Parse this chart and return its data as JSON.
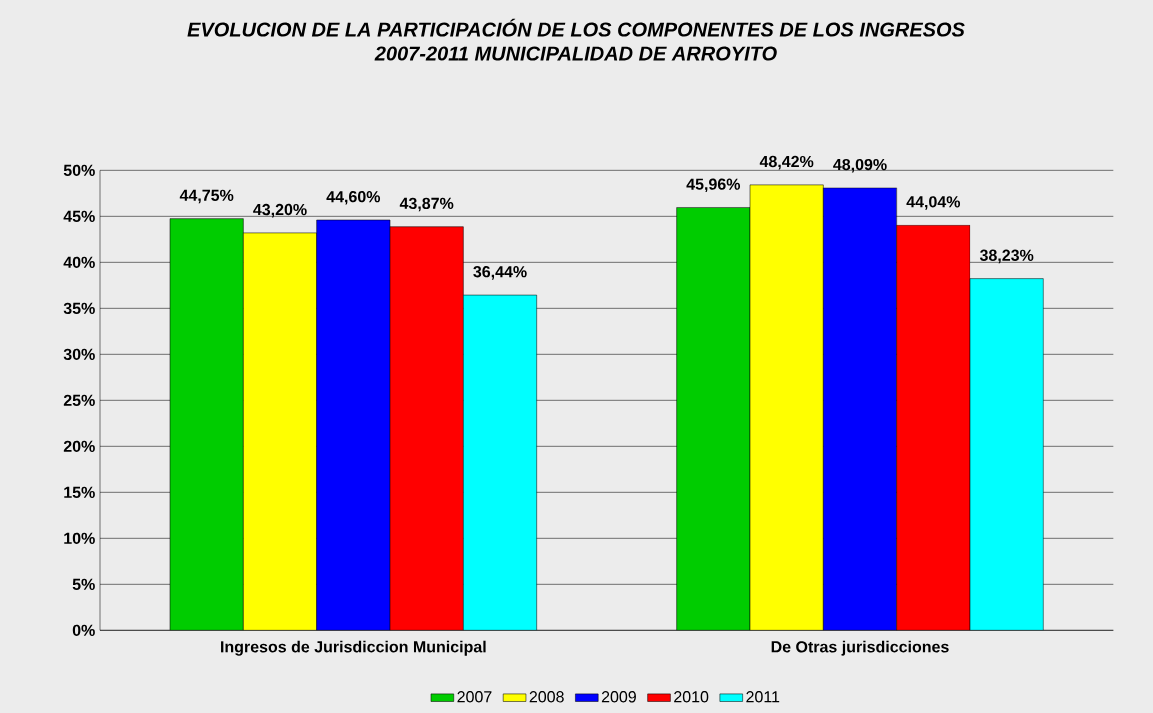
{
  "chart_data": {
    "type": "bar",
    "title": "EVOLUCION DE LA PARTICIPACIÓN DE LOS COMPONENTES DE LOS INGRESOS",
    "subtitle": "2007-2011 MUNICIPALIDAD DE ARROYITO",
    "categories": [
      "Ingresos de Jurisdiccion Municipal",
      "De Otras jurisdicciones"
    ],
    "series": [
      {
        "name": "2007",
        "color": "#00cc00",
        "values": [
          44.75,
          45.96
        ],
        "value_labels": [
          "44,75%",
          "45,96%"
        ]
      },
      {
        "name": "2008",
        "color": "#ffff00",
        "values": [
          43.2,
          48.42
        ],
        "value_labels": [
          "43,20%",
          "48,42%"
        ]
      },
      {
        "name": "2009",
        "color": "#0000ff",
        "values": [
          44.6,
          48.09
        ],
        "value_labels": [
          "44,60%",
          "48,09%"
        ]
      },
      {
        "name": "2010",
        "color": "#ff0000",
        "values": [
          43.87,
          44.04
        ],
        "value_labels": [
          "43,87%",
          "44,04%"
        ]
      },
      {
        "name": "2011",
        "color": "#00ffff",
        "values": [
          36.44,
          38.23
        ],
        "value_labels": [
          "36,44%",
          "38,23%"
        ]
      }
    ],
    "ylim": [
      0,
      50
    ],
    "yticks": [
      {
        "value": 0,
        "label": "0%"
      },
      {
        "value": 5,
        "label": "5%"
      },
      {
        "value": 10,
        "label": "10%"
      },
      {
        "value": 15,
        "label": "15%"
      },
      {
        "value": 20,
        "label": "20%"
      },
      {
        "value": 25,
        "label": "25%"
      },
      {
        "value": 30,
        "label": "30%"
      },
      {
        "value": 35,
        "label": "35%"
      },
      {
        "value": 40,
        "label": "40%"
      },
      {
        "value": 45,
        "label": "45%"
      },
      {
        "value": 50,
        "label": "50%"
      }
    ],
    "grid": "y",
    "legend": "bottom"
  }
}
